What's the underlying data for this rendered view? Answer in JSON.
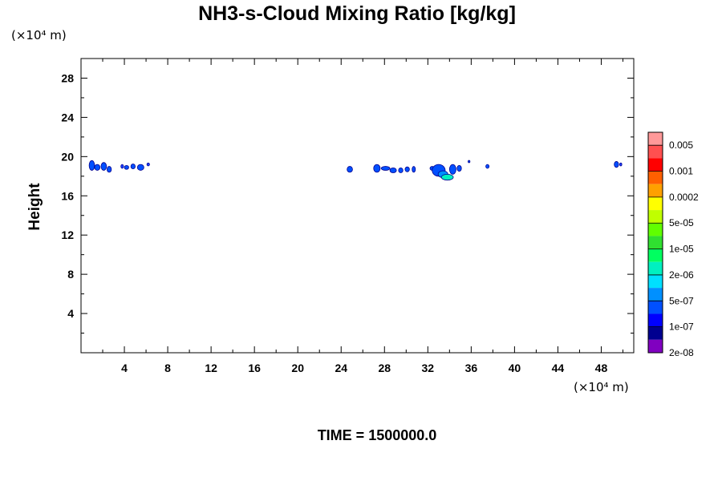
{
  "chart_data": {
    "type": "heatmap",
    "title": "NH3-s-Cloud Mixing Ratio [kg/kg]",
    "ylabel": "Height",
    "x_unit": "(×10⁴ m)",
    "y_unit": "(×10⁴ m)",
    "xlim": [
      0,
      51
    ],
    "ylim": [
      0,
      30
    ],
    "x_ticks": [
      4,
      8,
      12,
      16,
      20,
      24,
      28,
      32,
      36,
      40,
      44,
      48
    ],
    "y_ticks": [
      4,
      8,
      12,
      16,
      20,
      24,
      28
    ],
    "colorbar": {
      "labels": [
        "0.005",
        "0.001",
        "0.0002",
        "5e-05",
        "1e-05",
        "2e-06",
        "5e-07",
        "1e-07",
        "2e-08"
      ],
      "colors_top_to_bottom": [
        "#ff9999",
        "#ff5050",
        "#ff0000",
        "#ff6000",
        "#ffa000",
        "#ffff00",
        "#c0ff00",
        "#60ff00",
        "#30e030",
        "#00ff60",
        "#00f0c0",
        "#00e0ff",
        "#0090ff",
        "#0050ff",
        "#0000ff",
        "#000090",
        "#8000c0"
      ]
    },
    "blobs": [
      {
        "x": 1.0,
        "y": 19.1,
        "rx": 0.25,
        "ry": 0.5,
        "level": "1e-07"
      },
      {
        "x": 1.5,
        "y": 18.9,
        "rx": 0.25,
        "ry": 0.3,
        "level": "1e-07"
      },
      {
        "x": 2.1,
        "y": 19.0,
        "rx": 0.25,
        "ry": 0.4,
        "level": "1e-07"
      },
      {
        "x": 2.6,
        "y": 18.7,
        "rx": 0.2,
        "ry": 0.3,
        "level": "1e-07"
      },
      {
        "x": 3.8,
        "y": 19.0,
        "rx": 0.12,
        "ry": 0.2,
        "level": "2e-08"
      },
      {
        "x": 4.2,
        "y": 18.9,
        "rx": 0.2,
        "ry": 0.2,
        "level": "1e-07"
      },
      {
        "x": 4.8,
        "y": 19.0,
        "rx": 0.2,
        "ry": 0.25,
        "level": "1e-07"
      },
      {
        "x": 5.5,
        "y": 18.9,
        "rx": 0.3,
        "ry": 0.3,
        "level": "1e-07"
      },
      {
        "x": 6.2,
        "y": 19.2,
        "rx": 0.12,
        "ry": 0.15,
        "level": "2e-08"
      },
      {
        "x": 24.8,
        "y": 18.7,
        "rx": 0.25,
        "ry": 0.3,
        "level": "1e-07"
      },
      {
        "x": 27.3,
        "y": 18.8,
        "rx": 0.3,
        "ry": 0.4,
        "level": "1e-07"
      },
      {
        "x": 28.1,
        "y": 18.8,
        "rx": 0.4,
        "ry": 0.2,
        "level": "1e-07"
      },
      {
        "x": 28.8,
        "y": 18.6,
        "rx": 0.3,
        "ry": 0.25,
        "level": "1e-07"
      },
      {
        "x": 29.5,
        "y": 18.6,
        "rx": 0.2,
        "ry": 0.25,
        "level": "1e-07"
      },
      {
        "x": 30.1,
        "y": 18.7,
        "rx": 0.2,
        "ry": 0.25,
        "level": "1e-07"
      },
      {
        "x": 30.7,
        "y": 18.7,
        "rx": 0.15,
        "ry": 0.3,
        "level": "1e-07"
      },
      {
        "x": 32.4,
        "y": 18.8,
        "rx": 0.2,
        "ry": 0.2,
        "level": "1e-07"
      },
      {
        "x": 33.0,
        "y": 18.6,
        "rx": 0.6,
        "ry": 0.6,
        "level": "1e-07"
      },
      {
        "x": 33.4,
        "y": 18.2,
        "rx": 0.45,
        "ry": 0.35,
        "level": "5e-07"
      },
      {
        "x": 33.8,
        "y": 17.9,
        "rx": 0.55,
        "ry": 0.3,
        "level": "2e-06"
      },
      {
        "x": 34.3,
        "y": 18.7,
        "rx": 0.3,
        "ry": 0.5,
        "level": "1e-07"
      },
      {
        "x": 34.9,
        "y": 18.8,
        "rx": 0.2,
        "ry": 0.3,
        "level": "1e-07"
      },
      {
        "x": 35.8,
        "y": 19.5,
        "rx": 0.08,
        "ry": 0.12,
        "level": "1e-07"
      },
      {
        "x": 37.5,
        "y": 19.0,
        "rx": 0.15,
        "ry": 0.2,
        "level": "1e-07"
      },
      {
        "x": 49.4,
        "y": 19.2,
        "rx": 0.2,
        "ry": 0.3,
        "level": "1e-07"
      },
      {
        "x": 49.8,
        "y": 19.2,
        "rx": 0.1,
        "ry": 0.15,
        "level": "2e-08"
      }
    ]
  },
  "footer": {
    "time_label": "TIME = 1500000.0"
  }
}
